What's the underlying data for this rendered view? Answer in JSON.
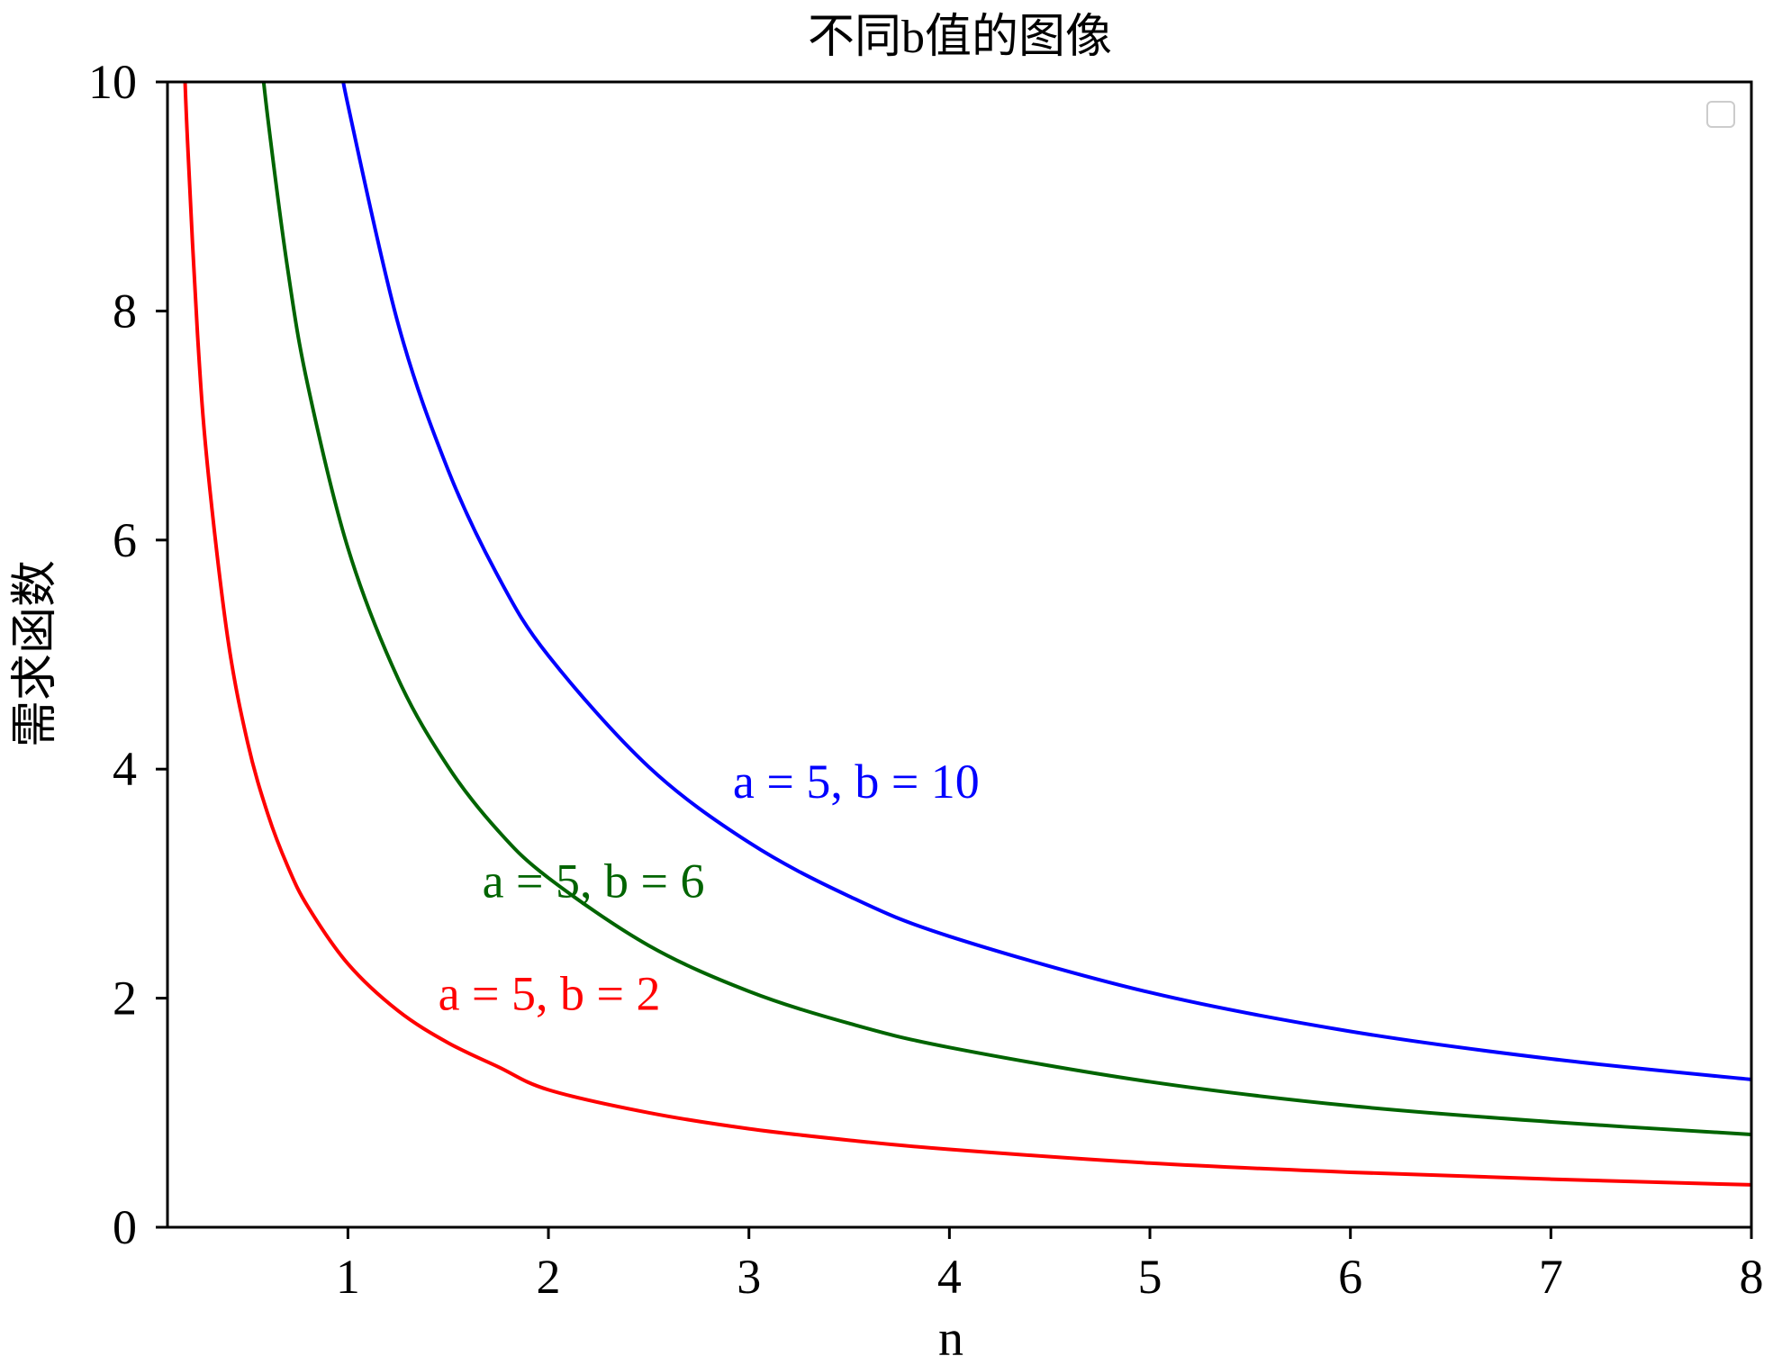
{
  "chart_data": {
    "type": "line",
    "title": "不同b值的图像",
    "xlabel": "n",
    "ylabel": "需求函数",
    "xlim": [
      0.1,
      8
    ],
    "ylim": [
      0,
      10
    ],
    "xticks": [
      1,
      2,
      3,
      4,
      5,
      6,
      7,
      8
    ],
    "yticks": [
      0,
      2,
      4,
      6,
      8,
      10
    ],
    "grid": false,
    "legend": {
      "placement": "top-right",
      "entries": []
    },
    "series": [
      {
        "name": "a = 5, b = 2",
        "color": "#ff0000",
        "label_at": [
          1.45,
          1.9
        ],
        "x": [
          0.15,
          0.18,
          0.2,
          0.25,
          0.3,
          0.4,
          0.5,
          0.6,
          0.7,
          0.8,
          1,
          1.25,
          1.5,
          1.75,
          2,
          2.5,
          3,
          3.5,
          4,
          5,
          6,
          7,
          8
        ],
        "y": [
          12.2,
          10.4,
          9.48,
          7.79,
          6.64,
          5.15,
          4.23,
          3.61,
          3.15,
          2.8,
          2.3,
          1.89,
          1.61,
          1.4,
          1.2,
          1.0,
          0.86,
          0.76,
          0.68,
          0.56,
          0.48,
          0.42,
          0.37
        ]
      },
      {
        "name": "a = 5, b = 6",
        "color": "#006400",
        "label_at": [
          1.67,
          2.88
        ],
        "x": [
          0.55,
          0.6,
          0.7,
          0.8,
          1,
          1.25,
          1.5,
          1.75,
          2,
          2.5,
          3,
          3.5,
          4,
          5,
          6,
          7,
          8
        ],
        "y": [
          10.5,
          9.69,
          8.36,
          7.35,
          5.93,
          4.79,
          4.02,
          3.46,
          3.05,
          2.46,
          2.06,
          1.78,
          1.57,
          1.27,
          1.06,
          0.92,
          0.81
        ]
      },
      {
        "name": "a = 5, b = 10",
        "color": "#0000ff",
        "label_at": [
          2.92,
          3.75
        ],
        "x": [
          0.95,
          1,
          1.25,
          1.5,
          1.75,
          2,
          2.5,
          3,
          3.5,
          4,
          5,
          6,
          7,
          8
        ],
        "y": [
          10.3,
          9.8,
          7.89,
          6.61,
          5.68,
          4.99,
          4.02,
          3.36,
          2.89,
          2.54,
          2.05,
          1.71,
          1.47,
          1.29
        ]
      }
    ]
  }
}
